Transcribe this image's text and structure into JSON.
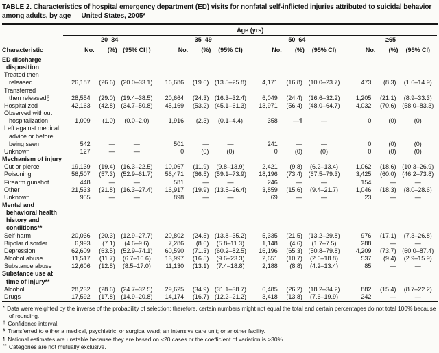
{
  "title": "TABLE 2. Characteristics of hospital emergency department (ED) visits for nonfatal self-inflicted injuries attributed to suicidal behavior among adults, by age — United States, 2005*",
  "header": {
    "age_span": "Age (yrs)",
    "characteristic": "Characteristic",
    "groups": [
      {
        "label": "20–34",
        "sub": [
          "No.",
          "(%)",
          "(95% CI†)"
        ]
      },
      {
        "label": "35–49",
        "sub": [
          "No.",
          "(%)",
          "(95% CI)"
        ]
      },
      {
        "label": "50–64",
        "sub": [
          "No.",
          "(%)",
          "(95% CI)"
        ]
      },
      {
        "label": "≥65",
        "sub": [
          "No.",
          "(%)",
          "(95% CI)"
        ]
      }
    ]
  },
  "rows": [
    {
      "type": "section",
      "label": "ED discharge\ndisposition"
    },
    {
      "type": "data",
      "label": "Treated then\nreleased",
      "cells": [
        "26,187",
        "(26.6)",
        "(20.0–33.1)",
        "16,686",
        "(19.6)",
        "(13.5–25.8)",
        "4,171",
        "(16.8)",
        "(10.0–23.7)",
        "473",
        "(8.3)",
        "(1.6–14.9)"
      ]
    },
    {
      "type": "data",
      "label": "Transferred\nthen released§",
      "cells": [
        "28,554",
        "(29.0)",
        "(19.4–38.5)",
        "20,664",
        "(24.3)",
        "(16.3–32.4)",
        "6,049",
        "(24.4)",
        "(16.6–32.2)",
        "1,205",
        "(21.1)",
        "(8.9–33.3)"
      ]
    },
    {
      "type": "data",
      "label": "Hospitalized",
      "cells": [
        "42,163",
        "(42.8)",
        "(34.7–50.8)",
        "45,169",
        "(53.2)",
        "(45.1–61.3)",
        "13,971",
        "(56.4)",
        "(48.0–64.7)",
        "4,032",
        "(70.6)",
        "(58.0–83.3)"
      ]
    },
    {
      "type": "data",
      "label": "Observed without\nhospitalization",
      "cells": [
        "1,009",
        "(1.0)",
        "(0.0–2.0)",
        "1,916",
        "(2.3)",
        "(0.1–4.4)",
        "358",
        "—¶",
        "—",
        "0",
        "(0)",
        "(0)"
      ]
    },
    {
      "type": "data",
      "label": "Left against medical\nadvice or before\nbeing seen",
      "cells": [
        "542",
        "—",
        "—",
        "501",
        "—",
        "—",
        "241",
        "—",
        "—",
        "0",
        "(0)",
        "(0)"
      ]
    },
    {
      "type": "data",
      "label": "Unknown",
      "cells": [
        "127",
        "—",
        "—",
        "0",
        "(0)",
        "(0)",
        "0",
        "(0)",
        "(0)",
        "0",
        "(0)",
        "(0)"
      ]
    },
    {
      "type": "section",
      "label": "Mechanism of injury"
    },
    {
      "type": "data",
      "label": "Cut or pierce",
      "cells": [
        "19,139",
        "(19.4)",
        "(16.3–22.5)",
        "10,067",
        "(11.9)",
        "(9.8–13.9)",
        "2,421",
        "(9.8)",
        "(6.2–13.4)",
        "1,062",
        "(18.6)",
        "(10.3–26.9)"
      ]
    },
    {
      "type": "data",
      "label": "Poisoning",
      "cells": [
        "56,507",
        "(57.3)",
        "(52.9–61.7)",
        "56,471",
        "(66.5)",
        "(59.1–73.9)",
        "18,196",
        "(73.4)",
        "(67.5–79.3)",
        "3,425",
        "(60.0)",
        "(46.2–73.8)"
      ]
    },
    {
      "type": "data",
      "label": "Firearm gunshot",
      "cells": [
        "448",
        "—",
        "—",
        "581",
        "—",
        "—",
        "246",
        "—",
        "—",
        "154",
        "—",
        "—"
      ]
    },
    {
      "type": "data",
      "label": "Other",
      "cells": [
        "21,533",
        "(21.8)",
        "(16.3–27.4)",
        "16,917",
        "(19.9)",
        "(13.5–26.4)",
        "3,859",
        "(15.6)",
        "(9.4–21.7)",
        "1,046",
        "(18.3)",
        "(8.0–28.6)"
      ]
    },
    {
      "type": "data",
      "label": "Unknown",
      "cells": [
        "955",
        "—",
        "—",
        "898",
        "—",
        "—",
        "69",
        "—",
        "—",
        "23",
        "—",
        "—"
      ]
    },
    {
      "type": "section",
      "label": "Mental and\nbehavioral health\nhistory and\nconditions**"
    },
    {
      "type": "data",
      "label": "Self-harm",
      "cells": [
        "20,036",
        "(20.3)",
        "(12.9–27.7)",
        "20,802",
        "(24.5)",
        "(13.8–35.2)",
        "5,335",
        "(21.5)",
        "(13.2–29.8)",
        "976",
        "(17.1)",
        "(7.3–26.8)"
      ]
    },
    {
      "type": "data",
      "label": "Bipolar disorder",
      "cells": [
        "6,993",
        "(7.1)",
        "(4.6–9.6)",
        "7,286",
        "(8.6)",
        "(5.8–11.3)",
        "1,148",
        "(4.6)",
        "(1.7–7.5)",
        "288",
        "—",
        "—"
      ]
    },
    {
      "type": "data",
      "label": "Depression",
      "cells": [
        "62,609",
        "(63.5)",
        "(52.9–74.1)",
        "60,590",
        "(71.3)",
        "(60.2–82.5)",
        "16,196",
        "(65.3)",
        "(50.8–79.8)",
        "4,209",
        "(73.7)",
        "(60.0–87.4)"
      ]
    },
    {
      "type": "data",
      "label": "Alcohol abuse",
      "cells": [
        "11,517",
        "(11.7)",
        "(6.7–16.6)",
        "13,997",
        "(16.5)",
        "(9.6–23.3)",
        "2,651",
        "(10.7)",
        "(2.6–18.8)",
        "537",
        "(9.4)",
        "(2.9–15.9)"
      ]
    },
    {
      "type": "data",
      "label": "Substance abuse",
      "cells": [
        "12,606",
        "(12.8)",
        "(8.5–17.0)",
        "11,130",
        "(13.1)",
        "(7.4–18.8)",
        "2,188",
        "(8.8)",
        "(4.2–13.4)",
        "85",
        "—",
        "—"
      ]
    },
    {
      "type": "section",
      "label": "Substance use at\ntime of injury**"
    },
    {
      "type": "data",
      "label": "Alcohol",
      "cells": [
        "28,232",
        "(28.6)",
        "(24.7–32.5)",
        "29,625",
        "(34.9)",
        "(31.1–38.7)",
        "6,485",
        "(26.2)",
        "(18.2–34.2)",
        "882",
        "(15.4)",
        "(8.7–22.2)"
      ]
    },
    {
      "type": "data",
      "label": "Drugs",
      "cells": [
        "17,592",
        "(17.8)",
        "(14.9–20.8)",
        "14,174",
        "(16.7)",
        "(12.2–21.2)",
        "3,418",
        "(13.8)",
        "(7.6–19.9)",
        "242",
        "—",
        "—"
      ]
    }
  ],
  "footnotes": [
    {
      "marker": "*",
      "text": "Data were weighted by the inverse of the probability of selection; therefore, certain numbers might not equal the total and certain percentages do not total 100% because of rounding."
    },
    {
      "marker": "†",
      "text": "Confidence interval."
    },
    {
      "marker": "§",
      "text": "Transferred to either a medical, psychiatric, or surgical ward; an intensive care unit; or another facility."
    },
    {
      "marker": "¶",
      "text": "National estimates are unstable because they are based on <20 cases or the coefficient of variation is >30%."
    },
    {
      "marker": "**",
      "text": "Categories are not mutually exclusive."
    }
  ]
}
